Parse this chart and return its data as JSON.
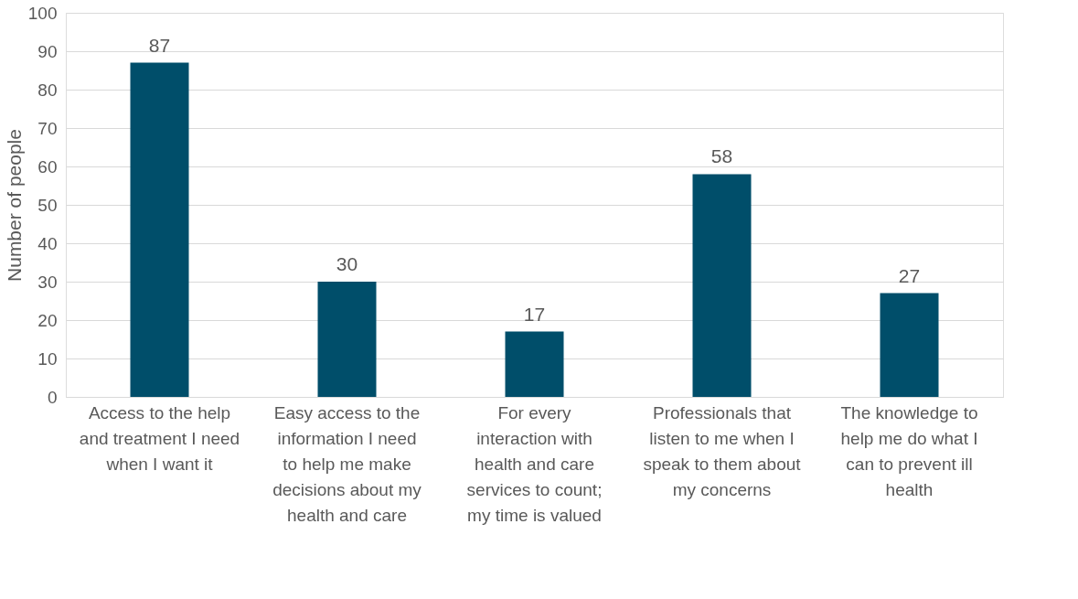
{
  "chart_data": {
    "type": "bar",
    "categories": [
      "Access to the help and treatment I need when I want it",
      "Easy access to the information I need to help me make decisions about my health and care",
      "For every interaction with health and care services to count; my time is valued",
      "Professionals that listen to me when I speak to them about my concerns",
      "The knowledge to help me do what I can to prevent ill health"
    ],
    "values": [
      87,
      30,
      17,
      58,
      27
    ],
    "color": "#004e6a",
    "ylabel": "Number of people",
    "ylim": [
      0,
      100
    ],
    "yticks": [
      0,
      10,
      20,
      30,
      40,
      50,
      60,
      70,
      80,
      90,
      100
    ],
    "grid": "y",
    "data_labels": true
  }
}
